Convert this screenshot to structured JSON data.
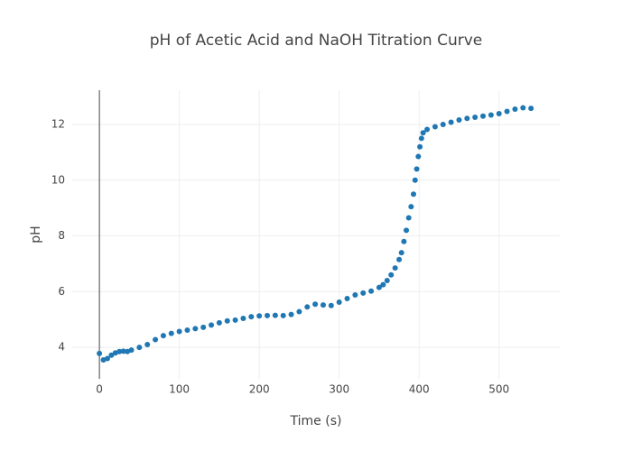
{
  "chart_data": {
    "type": "scatter",
    "title": "pH of Acetic Acid and NaOH Titration Curve",
    "x_label": "Time (s)",
    "y_label": "pH",
    "color": "#1f77b4",
    "grid": true,
    "xlim": [
      -34,
      576
    ],
    "ylim": [
      2.87,
      13.23
    ],
    "xticks": [
      0,
      100,
      200,
      300,
      400,
      500
    ],
    "yticks": [
      4,
      6,
      8,
      10,
      12
    ],
    "x": [
      0,
      5,
      10,
      15,
      20,
      25,
      30,
      35,
      40,
      50,
      60,
      70,
      80,
      90,
      100,
      110,
      120,
      130,
      140,
      150,
      160,
      170,
      180,
      190,
      200,
      210,
      220,
      230,
      240,
      250,
      260,
      270,
      280,
      290,
      300,
      310,
      320,
      330,
      340,
      350,
      355,
      360,
      365,
      370,
      375,
      378,
      381,
      384,
      387,
      390,
      393,
      395,
      397,
      399,
      401,
      403,
      405,
      410,
      420,
      430,
      440,
      450,
      460,
      470,
      480,
      490,
      500,
      510,
      520,
      530,
      540
    ],
    "values": [
      3.78,
      3.55,
      3.6,
      3.72,
      3.8,
      3.85,
      3.86,
      3.85,
      3.9,
      4.0,
      4.1,
      4.28,
      4.42,
      4.5,
      4.57,
      4.62,
      4.67,
      4.72,
      4.8,
      4.88,
      4.95,
      4.98,
      5.04,
      5.1,
      5.13,
      5.14,
      5.15,
      5.14,
      5.18,
      5.28,
      5.45,
      5.55,
      5.52,
      5.5,
      5.62,
      5.75,
      5.88,
      5.95,
      6.02,
      6.15,
      6.25,
      6.4,
      6.6,
      6.85,
      7.15,
      7.4,
      7.8,
      8.2,
      8.65,
      9.05,
      9.5,
      10.0,
      10.4,
      10.85,
      11.2,
      11.5,
      11.7,
      11.82,
      11.92,
      12.0,
      12.08,
      12.16,
      12.22,
      12.26,
      12.3,
      12.34,
      12.39,
      12.47,
      12.55,
      12.6,
      12.58
    ]
  }
}
